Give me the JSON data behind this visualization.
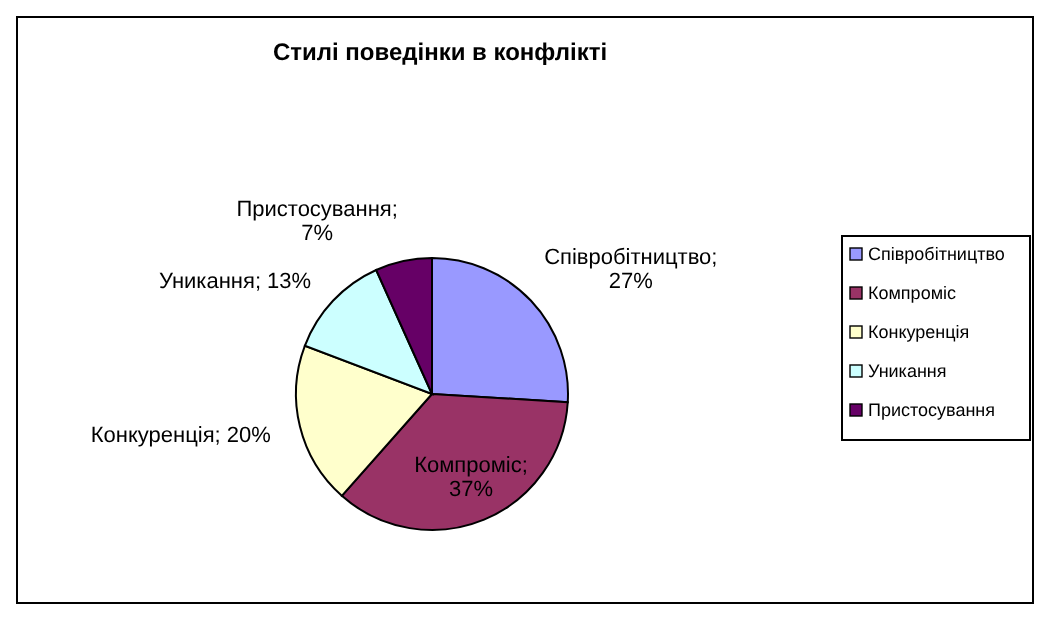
{
  "chart_data": {
    "type": "pie",
    "title": "Стилі поведінки в конфлікті",
    "categories": [
      "Співробітництво",
      "Компроміс",
      "Конкуренція",
      "Уникання",
      "Пристосування"
    ],
    "values": [
      27,
      37,
      20,
      13,
      7
    ],
    "value_labels": [
      "Співробітництво;\n27%",
      "Компроміс;\n37%",
      "Конкуренція; 20%",
      "Уникання; 13%",
      "Пристосування;\n7%"
    ],
    "colors": [
      "#9999ff",
      "#993366",
      "#ffffcc",
      "#ccffff",
      "#660066"
    ],
    "legend": "right"
  }
}
